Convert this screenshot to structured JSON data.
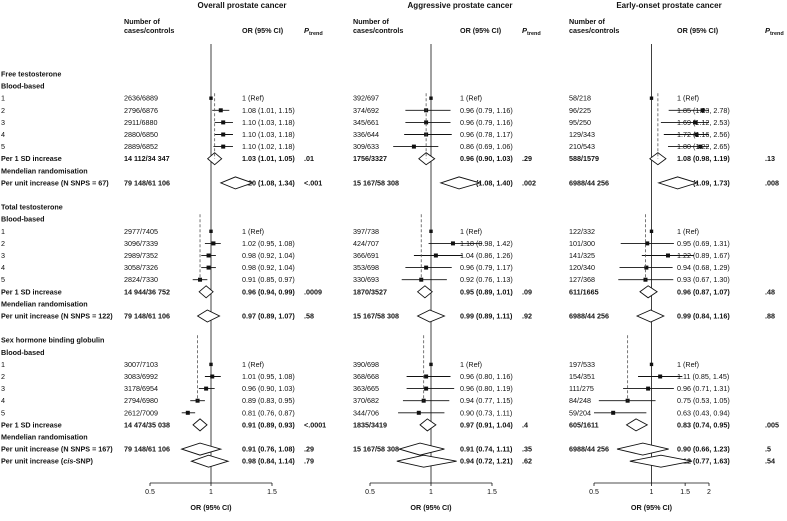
{
  "chart_data": {
    "type": "forest",
    "section_titles": [
      "Overall prostate cancer",
      "Aggressive prostate cancer",
      "Early-onset prostate cancer"
    ],
    "headers": {
      "cases_line1": "Number of",
      "cases_line2": "cases/controls",
      "or": "OR (95% CI)",
      "ptrend": "P",
      "ptrend_sub": "trend"
    },
    "xlabel": "OR (95% CI)",
    "axes": [
      {
        "xlim": [
          0.5,
          1.5
        ],
        "ticks": [
          0.5,
          1,
          1.5
        ],
        "tick_labels": [
          "0.5",
          "1",
          "1.5"
        ]
      },
      {
        "xlim": [
          0.5,
          1.5
        ],
        "ticks": [
          0.5,
          1,
          1.5
        ],
        "tick_labels": [
          "0.5",
          "1",
          "1.5"
        ]
      },
      {
        "xlim": [
          0.5,
          2
        ],
        "ticks": [
          0.5,
          1,
          1.5,
          2
        ],
        "tick_labels": [
          "0.5",
          "1",
          "1.5",
          "2"
        ],
        "scale": "log"
      }
    ],
    "rows": [
      {
        "label": "Free testosterone",
        "kind": "heading"
      },
      {
        "label": "Blood-based",
        "kind": "heading"
      },
      {
        "label": "1",
        "kind": "square",
        "cols": [
          {
            "n": "2636/6889",
            "or": 1,
            "lo": 1,
            "hi": 1,
            "text": "1 (Ref)"
          },
          {
            "n": "392/697",
            "or": 1,
            "lo": 1,
            "hi": 1,
            "text": "1 (Ref)"
          },
          {
            "n": "58/218",
            "or": 1,
            "lo": 1,
            "hi": 1,
            "text": "1 (Ref)"
          }
        ]
      },
      {
        "label": "2",
        "kind": "square",
        "cols": [
          {
            "n": "2796/6876",
            "or": 1.08,
            "lo": 1.01,
            "hi": 1.15,
            "text": "1.08 (1.01, 1.15)"
          },
          {
            "n": "374/692",
            "or": 0.96,
            "lo": 0.79,
            "hi": 1.16,
            "text": "0.96 (0.79, 1.16)"
          },
          {
            "n": "96/225",
            "or": 1.85,
            "lo": 1.23,
            "hi": 2.78,
            "text": "1.85 (1.23, 2.78)"
          }
        ]
      },
      {
        "label": "3",
        "kind": "square",
        "cols": [
          {
            "n": "2911/6880",
            "or": 1.1,
            "lo": 1.03,
            "hi": 1.18,
            "text": "1.10 (1.03, 1.18)"
          },
          {
            "n": "345/661",
            "or": 0.96,
            "lo": 0.79,
            "hi": 1.16,
            "text": "0.96 (0.79, 1.16)"
          },
          {
            "n": "95/250",
            "or": 1.69,
            "lo": 1.12,
            "hi": 2.53,
            "text": "1.69 (1.12, 2.53)"
          }
        ]
      },
      {
        "label": "4",
        "kind": "square",
        "cols": [
          {
            "n": "2880/6850",
            "or": 1.1,
            "lo": 1.03,
            "hi": 1.18,
            "text": "1.10 (1.03, 1.18)"
          },
          {
            "n": "336/644",
            "or": 0.96,
            "lo": 0.78,
            "hi": 1.17,
            "text": "0.96 (0.78, 1.17)"
          },
          {
            "n": "129/343",
            "or": 1.72,
            "lo": 1.16,
            "hi": 2.56,
            "text": "1.72 (1.16, 2.56)"
          }
        ]
      },
      {
        "label": "5",
        "kind": "square",
        "cols": [
          {
            "n": "2889/6852",
            "or": 1.1,
            "lo": 1.02,
            "hi": 1.18,
            "text": "1.10 (1.02, 1.18)"
          },
          {
            "n": "309/633",
            "or": 0.86,
            "lo": 0.69,
            "hi": 1.06,
            "text": "0.86 (0.69, 1.06)"
          },
          {
            "n": "210/543",
            "or": 1.8,
            "lo": 1.22,
            "hi": 2.65,
            "text": "1.80 (1.22, 2.65)"
          }
        ]
      },
      {
        "label": "Per 1 SD increase",
        "kind": "diamond",
        "bold": true,
        "cols": [
          {
            "n": "14 112/34 347",
            "or": 1.03,
            "lo": 1.01,
            "hi": 1.05,
            "text": "1.03 (1.01, 1.05)",
            "p": ".01"
          },
          {
            "n": "1756/3327",
            "or": 0.96,
            "lo": 0.9,
            "hi": 1.03,
            "text": "0.96 (0.90, 1.03)",
            "p": ".29"
          },
          {
            "n": "588/1579",
            "or": 1.08,
            "lo": 0.98,
            "hi": 1.19,
            "text": "1.08 (0.98, 1.19)",
            "p": ".13"
          }
        ]
      },
      {
        "label": "Mendelian randomisation",
        "kind": "heading"
      },
      {
        "label": "Per unit increase (N SNPS = 67)",
        "kind": "diamond",
        "bold": true,
        "cols": [
          {
            "n": "79 148/61 106",
            "or": 1.2,
            "lo": 1.08,
            "hi": 1.34,
            "text": "1.20 (1.08, 1.34)",
            "p": "<.001"
          },
          {
            "n": "15 167/58 308",
            "or": 1.23,
            "lo": 1.08,
            "hi": 1.4,
            "text": "1.23 (1.08, 1.40)",
            "p": ".002"
          },
          {
            "n": "6988/44 256",
            "or": 1.37,
            "lo": 1.09,
            "hi": 1.73,
            "text": "1.37 (1.09, 1.73)",
            "p": ".008"
          }
        ]
      },
      {
        "label": "",
        "kind": "blank"
      },
      {
        "label": "Total testosterone",
        "kind": "heading"
      },
      {
        "label": "Blood-based",
        "kind": "heading"
      },
      {
        "label": "1",
        "kind": "square",
        "cols": [
          {
            "n": "2977/7405",
            "or": 1,
            "lo": 1,
            "hi": 1,
            "text": "1 (Ref)"
          },
          {
            "n": "397/738",
            "or": 1,
            "lo": 1,
            "hi": 1,
            "text": "1 (Ref)"
          },
          {
            "n": "122/332",
            "or": 1,
            "lo": 1,
            "hi": 1,
            "text": "1 (Ref)"
          }
        ]
      },
      {
        "label": "2",
        "kind": "square",
        "cols": [
          {
            "n": "3096/7339",
            "or": 1.02,
            "lo": 0.95,
            "hi": 1.08,
            "text": "1.02 (0.95, 1.08)"
          },
          {
            "n": "424/707",
            "or": 1.18,
            "lo": 0.98,
            "hi": 1.42,
            "text": "1.18 (0.98, 1.42)"
          },
          {
            "n": "101/300",
            "or": 0.95,
            "lo": 0.69,
            "hi": 1.31,
            "text": "0.95 (0.69, 1.31)"
          }
        ]
      },
      {
        "label": "3",
        "kind": "square",
        "cols": [
          {
            "n": "2989/7352",
            "or": 0.98,
            "lo": 0.92,
            "hi": 1.04,
            "text": "0.98 (0.92, 1.04)"
          },
          {
            "n": "366/691",
            "or": 1.04,
            "lo": 0.86,
            "hi": 1.26,
            "text": "1.04 (0.86, 1.26)"
          },
          {
            "n": "141/325",
            "or": 1.22,
            "lo": 0.89,
            "hi": 1.67,
            "text": "1.22 (0.89, 1.67)"
          }
        ]
      },
      {
        "label": "4",
        "kind": "square",
        "cols": [
          {
            "n": "3058/7326",
            "or": 0.98,
            "lo": 0.92,
            "hi": 1.04,
            "text": "0.98 (0.92, 1.04)"
          },
          {
            "n": "353/698",
            "or": 0.96,
            "lo": 0.79,
            "hi": 1.17,
            "text": "0.96 (0.79, 1.17)"
          },
          {
            "n": "120/340",
            "or": 0.94,
            "lo": 0.68,
            "hi": 1.29,
            "text": "0.94 (0.68, 1.29)"
          }
        ]
      },
      {
        "label": "5",
        "kind": "square",
        "cols": [
          {
            "n": "2824/7330",
            "or": 0.91,
            "lo": 0.85,
            "hi": 0.97,
            "text": "0.91 (0.85, 0.97)"
          },
          {
            "n": "330/693",
            "or": 0.92,
            "lo": 0.76,
            "hi": 1.13,
            "text": "0.92 (0.76, 1.13)"
          },
          {
            "n": "127/368",
            "or": 0.93,
            "lo": 0.67,
            "hi": 1.3,
            "text": "0.93 (0.67, 1.30)"
          }
        ]
      },
      {
        "label": "Per 1 SD increase",
        "kind": "diamond",
        "bold": true,
        "cols": [
          {
            "n": "14 944/36 752",
            "or": 0.96,
            "lo": 0.94,
            "hi": 0.99,
            "text": "0.96 (0.94, 0.99)",
            "p": ".0009"
          },
          {
            "n": "1870/3527",
            "or": 0.95,
            "lo": 0.89,
            "hi": 1.01,
            "text": "0.95 (0.89, 1.01)",
            "p": ".09"
          },
          {
            "n": "611/1665",
            "or": 0.96,
            "lo": 0.87,
            "hi": 1.07,
            "text": "0.96 (0.87, 1.07)",
            "p": ".48"
          }
        ]
      },
      {
        "label": "Mendelian randomisation",
        "kind": "heading"
      },
      {
        "label": "Per unit increase (N SNPS = 122)",
        "kind": "diamond",
        "bold": true,
        "cols": [
          {
            "n": "79 148/61 106",
            "or": 0.97,
            "lo": 0.89,
            "hi": 1.07,
            "text": "0.97 (0.89, 1.07)",
            "p": ".58"
          },
          {
            "n": "15 167/58 308",
            "or": 0.99,
            "lo": 0.89,
            "hi": 1.11,
            "text": "0.99 (0.89, 1.11)",
            "p": ".92"
          },
          {
            "n": "6988/44 256",
            "or": 0.99,
            "lo": 0.84,
            "hi": 1.16,
            "text": "0.99 (0.84, 1.16)",
            "p": ".88"
          }
        ]
      },
      {
        "label": "",
        "kind": "blank"
      },
      {
        "label": "Sex hormone binding globulin",
        "kind": "heading"
      },
      {
        "label": "Blood-based",
        "kind": "heading"
      },
      {
        "label": "1",
        "kind": "square",
        "cols": [
          {
            "n": "3007/7103",
            "or": 1,
            "lo": 1,
            "hi": 1,
            "text": "1 (Ref)"
          },
          {
            "n": "390/698",
            "or": 1,
            "lo": 1,
            "hi": 1,
            "text": "1 (Ref)"
          },
          {
            "n": "197/533",
            "or": 1,
            "lo": 1,
            "hi": 1,
            "text": "1 (Ref)"
          }
        ]
      },
      {
        "label": "2",
        "kind": "square",
        "cols": [
          {
            "n": "3083/6992",
            "or": 1.01,
            "lo": 0.95,
            "hi": 1.08,
            "text": "1.01 (0.95, 1.08)"
          },
          {
            "n": "368/668",
            "or": 0.96,
            "lo": 0.8,
            "hi": 1.16,
            "text": "0.96 (0.80, 1.16)"
          },
          {
            "n": "154/351",
            "or": 1.11,
            "lo": 0.85,
            "hi": 1.45,
            "text": "1.11 (0.85, 1.45)"
          }
        ]
      },
      {
        "label": "3",
        "kind": "square",
        "cols": [
          {
            "n": "3178/6954",
            "or": 0.96,
            "lo": 0.9,
            "hi": 1.03,
            "text": "0.96 (0.90, 1.03)"
          },
          {
            "n": "363/665",
            "or": 0.96,
            "lo": 0.8,
            "hi": 1.19,
            "text": "0.96 (0.80, 1.19)"
          },
          {
            "n": "111/275",
            "or": 0.96,
            "lo": 0.71,
            "hi": 1.31,
            "text": "0.96 (0.71, 1.31)"
          }
        ]
      },
      {
        "label": "4",
        "kind": "square",
        "cols": [
          {
            "n": "2794/6980",
            "or": 0.89,
            "lo": 0.83,
            "hi": 0.95,
            "text": "0.89 (0.83, 0.95)"
          },
          {
            "n": "370/682",
            "or": 0.94,
            "lo": 0.77,
            "hi": 1.15,
            "text": "0.94 (0.77, 1.15)"
          },
          {
            "n": "84/248",
            "or": 0.75,
            "lo": 0.53,
            "hi": 1.05,
            "text": "0.75 (0.53, 1.05)"
          }
        ]
      },
      {
        "label": "5",
        "kind": "square",
        "cols": [
          {
            "n": "2612/7009",
            "or": 0.81,
            "lo": 0.76,
            "hi": 0.87,
            "text": "0.81 (0.76, 0.87)"
          },
          {
            "n": "344/706",
            "or": 0.9,
            "lo": 0.73,
            "hi": 1.11,
            "text": "0.90 (0.73, 1.11)"
          },
          {
            "n": "59/204",
            "or": 0.63,
            "lo": 0.43,
            "hi": 0.94,
            "text": "0.63 (0.43, 0.94)"
          }
        ]
      },
      {
        "label": "Per 1 SD increase",
        "kind": "diamond",
        "bold": true,
        "cols": [
          {
            "n": "14 474/35 038",
            "or": 0.91,
            "lo": 0.89,
            "hi": 0.93,
            "text": "0.91 (0.89, 0.93)",
            "p": "<.0001"
          },
          {
            "n": "1835/3419",
            "or": 0.97,
            "lo": 0.91,
            "hi": 1.04,
            "text": "0.97 (0.91, 1.04)",
            "p": ".4"
          },
          {
            "n": "605/1611",
            "or": 0.83,
            "lo": 0.74,
            "hi": 0.95,
            "text": "0.83 (0.74, 0.95)",
            "p": ".005"
          }
        ]
      },
      {
        "label": "Mendelian randomisation",
        "kind": "heading"
      },
      {
        "label": "Per unit increase (N SNPS = 167)",
        "kind": "diamond",
        "bold": true,
        "cols": [
          {
            "n": "79 148/61 106",
            "or": 0.91,
            "lo": 0.76,
            "hi": 1.08,
            "text": "0.91 (0.76, 1.08)",
            "p": ".29"
          },
          {
            "n": "15 167/58 308",
            "or": 0.91,
            "lo": 0.74,
            "hi": 1.11,
            "text": "0.91 (0.74, 1.11)",
            "p": ".35"
          },
          {
            "n": "6988/44 256",
            "or": 0.9,
            "lo": 0.66,
            "hi": 1.23,
            "text": "0.90 (0.66, 1.23)",
            "p": ".5"
          }
        ]
      },
      {
        "label": "Per unit increase (cis-SNP)",
        "label_parts": [
          "Per unit increase (",
          "cis",
          "-SNP)"
        ],
        "kind": "diamond",
        "bold": true,
        "cols": [
          {
            "n": "",
            "or": 0.98,
            "lo": 0.84,
            "hi": 1.14,
            "text": "0.98 (0.84, 1.14)",
            "p": ".79"
          },
          {
            "n": "",
            "or": 0.94,
            "lo": 0.72,
            "hi": 1.21,
            "text": "0.94 (0.72, 1.21)",
            "p": ".62"
          },
          {
            "n": "",
            "or": 1.12,
            "lo": 0.77,
            "hi": 1.63,
            "text": "1.12 (0.77, 1.63)",
            "p": ".54"
          }
        ]
      }
    ]
  }
}
